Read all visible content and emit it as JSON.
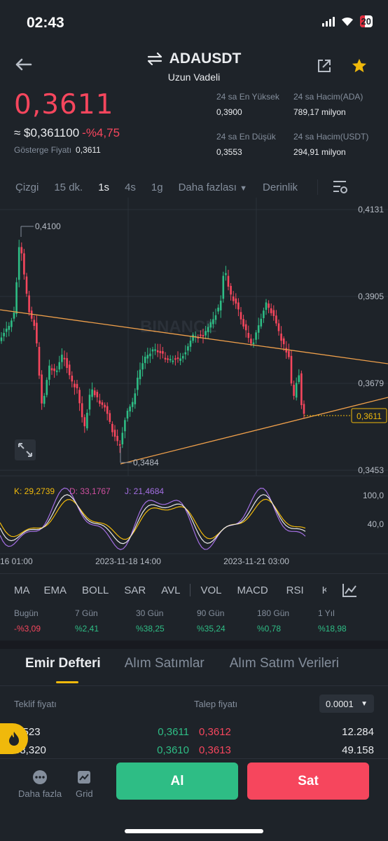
{
  "status_bar": {
    "time": "02:43",
    "battery": "20"
  },
  "header": {
    "symbol": "ADAUSDT",
    "subtitle": "Uzun Vadeli"
  },
  "price": {
    "last": "0,3611",
    "usd": "≈ $0,361100",
    "change": "-%4,75",
    "index_label": "Gösterge Fiyatı",
    "index_value": "0,3611"
  },
  "stats": {
    "high_label": "24 sa En Yüksek",
    "high_value": "0,3900",
    "vol_ada_label": "24 sa Hacim(ADA)",
    "vol_ada_value": "789,17 milyon",
    "low_label": "24 sa En Düşük",
    "low_value": "0,3553",
    "vol_usdt_label": "24 sa Hacim(USDT)",
    "vol_usdt_value": "294,91 milyon"
  },
  "interval_tabs": [
    "Çizgi",
    "15 dk.",
    "1s",
    "4s",
    "1g",
    "Daha fazlası",
    "Derinlik"
  ],
  "active_interval": "1s",
  "chart_data": {
    "type": "candlestick",
    "price_axis": [
      "0,4131",
      "0,3905",
      "0,3679",
      "0,3453"
    ],
    "current_price_tag": "0,3611",
    "max_label": "0,4100",
    "min_label": "0,3484",
    "watermark": "BINANCE",
    "time_axis": [
      "16 01:00",
      "2023-11-18 14:00",
      "2023-11-21 03:00"
    ],
    "kdj": {
      "k_label": "K: 29,2739",
      "d_label": "D: 33,1767",
      "j_label": "J: 21,4684",
      "axis": [
        "100,0",
        "40,0"
      ]
    },
    "colors": {
      "up": "#2ebd85",
      "down": "#f6465d",
      "trendline": "#f0a04b",
      "k": "#e8e8e8",
      "d": "#f0b90b",
      "j": "#a46fe3"
    }
  },
  "indicator_tabs": [
    "MA",
    "EMA",
    "BOLL",
    "SAR",
    "AVL",
    "VOL",
    "MACD",
    "RSI",
    "K"
  ],
  "performance": [
    {
      "label": "Bugün",
      "value": "-%3,09",
      "dir": "down"
    },
    {
      "label": "7 Gün",
      "value": "%2,41",
      "dir": "up"
    },
    {
      "label": "30 Gün",
      "value": "%38,25",
      "dir": "up"
    },
    {
      "label": "90 Gün",
      "value": "%35,24",
      "dir": "up"
    },
    {
      "label": "180 Gün",
      "value": "%0,78",
      "dir": "up"
    },
    {
      "label": "1 Yıl",
      "value": "%18,98",
      "dir": "up"
    }
  ],
  "orderbook_tabs": [
    "Emir Defteri",
    "Alım Satımlar",
    "Alım Satım Verileri"
  ],
  "orderbook": {
    "bid_label": "Teklif fiyatı",
    "ask_label": "Talep fiyatı",
    "precision": "0.0001",
    "rows": [
      {
        "bid_qty": "3,523",
        "bid": "0,3611",
        "ask": "0,3612",
        "ask_qty": "12.284"
      },
      {
        "bid_qty": "38,320",
        "bid": "0,3610",
        "ask": "0,3613",
        "ask_qty": "49.158"
      }
    ]
  },
  "bottom": {
    "more_label": "Daha fazla",
    "grid_label": "Grid",
    "buy_label": "Al",
    "sell_label": "Sat"
  }
}
